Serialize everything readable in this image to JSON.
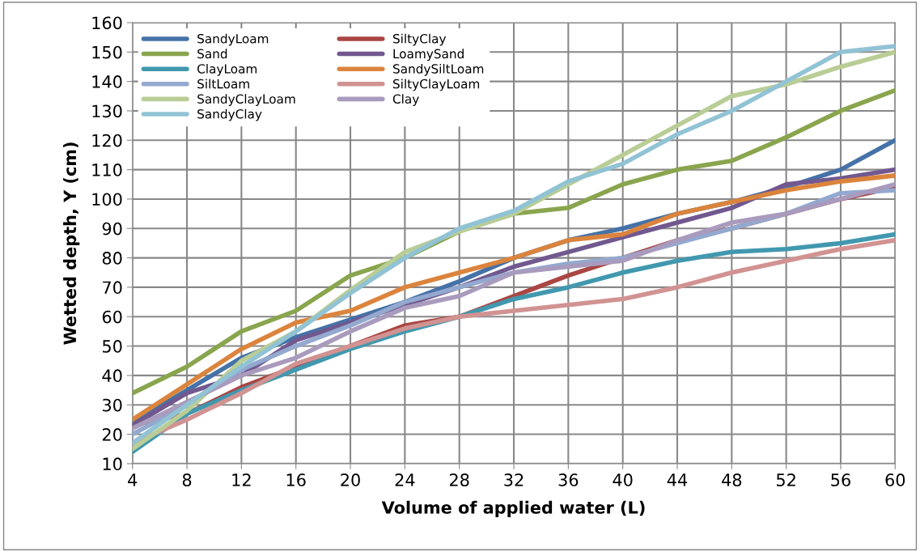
{
  "chart_data": {
    "type": "line",
    "xlabel": "Volume of applied water (L)",
    "ylabel": "Wetted depth, Y (cm)",
    "x": [
      4,
      8,
      12,
      16,
      20,
      24,
      28,
      32,
      36,
      40,
      44,
      48,
      52,
      56,
      60
    ],
    "xlim": [
      4,
      60
    ],
    "xticks": [
      4,
      8,
      12,
      16,
      20,
      24,
      28,
      32,
      36,
      40,
      44,
      48,
      52,
      56,
      60
    ],
    "ylim": [
      10,
      160
    ],
    "yticks": [
      10,
      20,
      30,
      40,
      50,
      60,
      70,
      80,
      90,
      100,
      110,
      120,
      130,
      140,
      150,
      160
    ],
    "grid": true,
    "legend": "top left",
    "marker": "none",
    "line_style": "solid",
    "series": [
      {
        "name": "SandyLoam",
        "color": "#4572a7",
        "values": [
          24,
          35,
          46,
          53,
          59,
          65,
          72,
          80,
          86,
          90,
          95,
          99,
          104,
          110,
          120
        ]
      },
      {
        "name": "SiltyClay",
        "color": "#aa4643",
        "values": [
          23,
          27,
          36,
          43,
          50,
          57,
          60,
          67,
          74,
          80,
          86,
          90,
          95,
          100,
          104
        ]
      },
      {
        "name": "Sand",
        "color": "#89a54e",
        "values": [
          34,
          43,
          55,
          62,
          74,
          80,
          89,
          95,
          97,
          105,
          110,
          113,
          121,
          130,
          137
        ]
      },
      {
        "name": "LoamySand",
        "color": "#71588f",
        "values": [
          23,
          34,
          40,
          52,
          58,
          64,
          70,
          77,
          82,
          87,
          92,
          97,
          105,
          107,
          110
        ]
      },
      {
        "name": "ClayLoam",
        "color": "#4198af",
        "values": [
          14,
          27,
          35,
          42,
          49,
          55,
          60,
          66,
          70,
          75,
          79,
          82,
          83,
          85,
          88
        ]
      },
      {
        "name": "SandySiltLoam",
        "color": "#db843d",
        "values": [
          25,
          37,
          49,
          58,
          62,
          70,
          75,
          80,
          86,
          88,
          95,
          99,
          103,
          106,
          108
        ]
      },
      {
        "name": "SiltLoam",
        "color": "#93a9cf",
        "values": [
          20,
          30,
          42,
          50,
          57,
          65,
          70,
          75,
          78,
          80,
          85,
          90,
          95,
          102,
          103
        ]
      },
      {
        "name": "SiltyClayLoam",
        "color": "#d19392",
        "values": [
          17,
          25,
          34,
          44,
          50,
          56,
          60,
          62,
          64,
          66,
          70,
          75,
          79,
          83,
          86
        ]
      },
      {
        "name": "SandyClayLoam",
        "color": "#b9cd96",
        "values": [
          15,
          28,
          45,
          55,
          69,
          82,
          89,
          95,
          105,
          115,
          125,
          135,
          139,
          145,
          150
        ]
      },
      {
        "name": "Clay",
        "color": "#a99bbd",
        "values": [
          22,
          31,
          40,
          46,
          55,
          63,
          67,
          75,
          77,
          79,
          86,
          92,
          95,
          100,
          105
        ]
      },
      {
        "name": "SandyClay",
        "color": "#91c3d5",
        "values": [
          17,
          30,
          43,
          55,
          68,
          80,
          90,
          96,
          106,
          112,
          122,
          130,
          140,
          150,
          152
        ]
      }
    ]
  }
}
